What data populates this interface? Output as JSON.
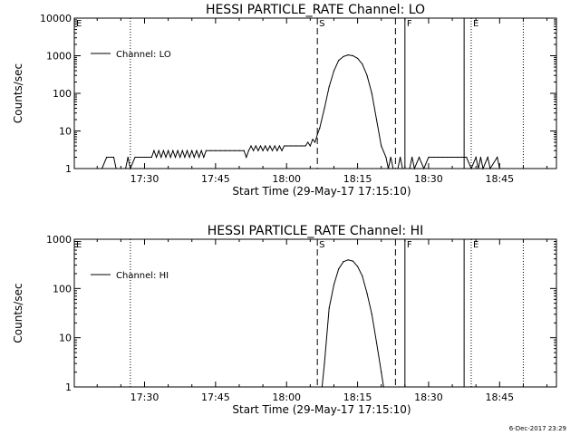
{
  "chart_data": [
    {
      "type": "line",
      "title": "HESSI PARTICLE_RATE Channel: LO",
      "xlabel": "Start Time (29-May-17 17:15:10)",
      "ylabel": "Counts/sec",
      "yscale": "log",
      "xlim": [
        "17:15:10",
        "18:57:00"
      ],
      "ylim": [
        1,
        10000
      ],
      "x_tick_labels": [
        "17:30",
        "17:45",
        "18:00",
        "18:15",
        "18:30",
        "18:45"
      ],
      "y_tick_labels": [
        "1",
        "10",
        "100",
        "1000",
        "10000"
      ],
      "legend": {
        "placement": "top-left",
        "entries": [
          "Channel: LO"
        ]
      },
      "markers": [
        {
          "label": "E",
          "time": "17:15:10",
          "style": "dotted"
        },
        {
          "label": "",
          "time": "17:27:00",
          "style": "dotted"
        },
        {
          "label": "S",
          "time": "18:06:30",
          "style": "dashed"
        },
        {
          "label": "",
          "time": "18:23:00",
          "style": "dashed"
        },
        {
          "label": "F",
          "time": "18:25:00",
          "style": "solid"
        },
        {
          "label": "",
          "time": "18:37:30",
          "style": "solid"
        },
        {
          "label": "E",
          "time": "18:39:00",
          "style": "dotted"
        },
        {
          "label": "",
          "time": "18:50:00",
          "style": "dotted"
        }
      ],
      "series": [
        {
          "name": "Channel: LO",
          "points": [
            [
              "17:21:00",
              1
            ],
            [
              "17:22:00",
              2
            ],
            [
              "17:23:30",
              2
            ],
            [
              "17:24:00",
              1
            ],
            [
              "17:26:00",
              1
            ],
            [
              "17:26:30",
              2
            ],
            [
              "17:27:00",
              1
            ],
            [
              "17:28:00",
              2
            ],
            [
              "17:31:30",
              2
            ],
            [
              "17:32:00",
              3
            ],
            [
              "17:32:30",
              2
            ],
            [
              "17:33:00",
              3
            ],
            [
              "17:33:30",
              2
            ],
            [
              "17:34:00",
              3
            ],
            [
              "17:34:30",
              2
            ],
            [
              "17:35:00",
              3
            ],
            [
              "17:35:30",
              2
            ],
            [
              "17:36:00",
              3
            ],
            [
              "17:36:30",
              2
            ],
            [
              "17:37:00",
              3
            ],
            [
              "17:37:30",
              2
            ],
            [
              "17:38:00",
              3
            ],
            [
              "17:38:30",
              2
            ],
            [
              "17:39:00",
              3
            ],
            [
              "17:39:30",
              2
            ],
            [
              "17:40:00",
              3
            ],
            [
              "17:40:30",
              2
            ],
            [
              "17:41:00",
              3
            ],
            [
              "17:41:30",
              2
            ],
            [
              "17:42:00",
              3
            ],
            [
              "17:42:30",
              2
            ],
            [
              "17:43:00",
              3
            ],
            [
              "17:44:00",
              3
            ],
            [
              "17:45:00",
              3
            ],
            [
              "17:46:00",
              3
            ],
            [
              "17:47:00",
              3
            ],
            [
              "17:48:00",
              3
            ],
            [
              "17:49:00",
              3
            ],
            [
              "17:50:00",
              3
            ],
            [
              "17:51:00",
              3
            ],
            [
              "17:51:30",
              2
            ],
            [
              "17:52:00",
              3
            ],
            [
              "17:52:30",
              4
            ],
            [
              "17:53:00",
              3
            ],
            [
              "17:53:30",
              4
            ],
            [
              "17:54:00",
              3
            ],
            [
              "17:54:30",
              4
            ],
            [
              "17:55:00",
              3
            ],
            [
              "17:55:30",
              4
            ],
            [
              "17:56:00",
              3
            ],
            [
              "17:56:30",
              4
            ],
            [
              "17:57:00",
              3
            ],
            [
              "17:57:30",
              4
            ],
            [
              "17:58:00",
              3
            ],
            [
              "17:58:30",
              4
            ],
            [
              "17:59:00",
              3
            ],
            [
              "17:59:30",
              4
            ],
            [
              "18:00:00",
              4
            ],
            [
              "18:01:00",
              4
            ],
            [
              "18:02:00",
              4
            ],
            [
              "18:03:00",
              4
            ],
            [
              "18:04:00",
              4
            ],
            [
              "18:04:30",
              5
            ],
            [
              "18:05:00",
              4
            ],
            [
              "18:05:30",
              6
            ],
            [
              "18:06:00",
              5
            ],
            [
              "18:06:30",
              8
            ],
            [
              "18:07:00",
              12
            ],
            [
              "18:08:00",
              40
            ],
            [
              "18:09:00",
              150
            ],
            [
              "18:10:00",
              400
            ],
            [
              "18:11:00",
              750
            ],
            [
              "18:12:00",
              950
            ],
            [
              "18:13:00",
              1050
            ],
            [
              "18:14:00",
              1000
            ],
            [
              "18:15:00",
              850
            ],
            [
              "18:16:00",
              600
            ],
            [
              "18:17:00",
              300
            ],
            [
              "18:18:00",
              100
            ],
            [
              "18:19:00",
              20
            ],
            [
              "18:20:00",
              4
            ],
            [
              "18:21:00",
              2
            ],
            [
              "18:21:30",
              1
            ],
            [
              "18:22:00",
              2
            ],
            [
              "18:22:30",
              1
            ],
            [
              "18:23:30",
              1
            ],
            [
              "18:24:00",
              2
            ],
            [
              "18:24:30",
              1
            ],
            [
              "18:26:00",
              1
            ],
            [
              "18:26:30",
              2
            ],
            [
              "18:27:00",
              1
            ],
            [
              "18:28:00",
              2
            ],
            [
              "18:29:00",
              1
            ],
            [
              "18:30:00",
              2
            ],
            [
              "18:31:00",
              2
            ],
            [
              "18:32:00",
              2
            ],
            [
              "18:33:00",
              2
            ],
            [
              "18:34:00",
              2
            ],
            [
              "18:35:00",
              2
            ],
            [
              "18:36:00",
              2
            ],
            [
              "18:37:00",
              2
            ],
            [
              "18:38:00",
              2
            ],
            [
              "18:39:00",
              1
            ],
            [
              "18:40:00",
              2
            ],
            [
              "18:40:30",
              1
            ],
            [
              "18:41:00",
              2
            ],
            [
              "18:41:30",
              1
            ],
            [
              "18:42:30",
              2
            ],
            [
              "18:43:00",
              1
            ],
            [
              "18:44:30",
              2
            ],
            [
              "18:45:00",
              1
            ]
          ]
        }
      ]
    },
    {
      "type": "line",
      "title": "HESSI PARTICLE_RATE Channel: HI",
      "xlabel": "Start Time (29-May-17 17:15:10)",
      "ylabel": "Counts/sec",
      "yscale": "log",
      "xlim": [
        "17:15:10",
        "18:57:00"
      ],
      "ylim": [
        1,
        1000
      ],
      "x_tick_labels": [
        "17:30",
        "17:45",
        "18:00",
        "18:15",
        "18:30",
        "18:45"
      ],
      "y_tick_labels": [
        "1",
        "10",
        "100",
        "1000"
      ],
      "legend": {
        "placement": "top-left",
        "entries": [
          "Channel: HI"
        ]
      },
      "markers": [
        {
          "label": "E",
          "time": "17:15:10",
          "style": "dotted"
        },
        {
          "label": "",
          "time": "17:27:00",
          "style": "dotted"
        },
        {
          "label": "S",
          "time": "18:06:30",
          "style": "dashed"
        },
        {
          "label": "",
          "time": "18:23:00",
          "style": "dashed"
        },
        {
          "label": "F",
          "time": "18:25:00",
          "style": "solid"
        },
        {
          "label": "",
          "time": "18:37:30",
          "style": "solid"
        },
        {
          "label": "E",
          "time": "18:39:00",
          "style": "dotted"
        },
        {
          "label": "",
          "time": "18:50:00",
          "style": "dotted"
        }
      ],
      "series": [
        {
          "name": "Channel: HI",
          "points": [
            [
              "18:07:30",
              1
            ],
            [
              "18:08:00",
              3
            ],
            [
              "18:09:00",
              40
            ],
            [
              "18:10:00",
              120
            ],
            [
              "18:11:00",
              250
            ],
            [
              "18:12:00",
              350
            ],
            [
              "18:13:00",
              380
            ],
            [
              "18:14:00",
              360
            ],
            [
              "18:15:00",
              280
            ],
            [
              "18:16:00",
              180
            ],
            [
              "18:17:00",
              80
            ],
            [
              "18:18:00",
              30
            ],
            [
              "18:19:00",
              8
            ],
            [
              "18:20:00",
              2
            ],
            [
              "18:20:30",
              1
            ]
          ]
        }
      ]
    }
  ],
  "footer": {
    "timestamp": "6-Dec-2017 23:29"
  }
}
